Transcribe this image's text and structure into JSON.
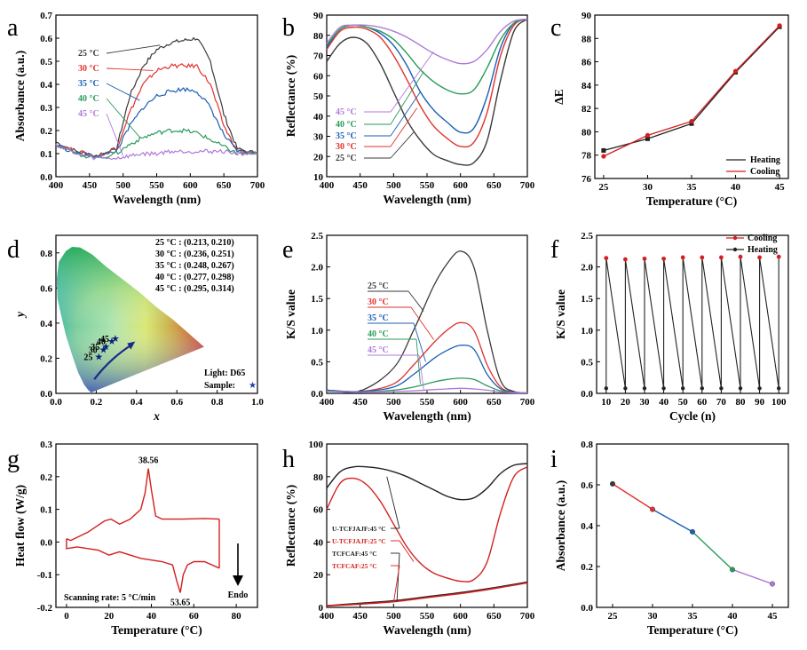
{
  "figure": {
    "panel_labels": [
      "a",
      "b",
      "c",
      "d",
      "e",
      "f",
      "g",
      "h",
      "i"
    ],
    "temperatures": [
      "25 °C",
      "30 °C",
      "35 °C",
      "40 °C",
      "45 °C"
    ],
    "colors": {
      "t25": "#3a3a3a",
      "t30": "#e0322c",
      "t35": "#1a5fb4",
      "t40": "#2a9a5a",
      "t45": "#b07ad8",
      "red": "#d41f1f",
      "black": "#222222"
    }
  },
  "chart_data": [
    {
      "id": "a",
      "type": "line",
      "xlabel": "Wavelength (nm)",
      "ylabel": "Absorbance (a.u.)",
      "xlim": [
        400,
        700
      ],
      "ylim": [
        0,
        0.7
      ],
      "xticks": [
        "400",
        "450",
        "500",
        "550",
        "600",
        "650",
        "700"
      ],
      "yticks": [
        "0.0",
        "0.1",
        "0.2",
        "0.3",
        "0.4",
        "0.5",
        "0.6",
        "0.7"
      ],
      "series": [
        {
          "name": "25 °C",
          "x": [
            400,
            430,
            460,
            490,
            510,
            530,
            550,
            570,
            590,
            610,
            630,
            650,
            670,
            700
          ],
          "y": [
            0.15,
            0.11,
            0.09,
            0.12,
            0.35,
            0.48,
            0.55,
            0.58,
            0.59,
            0.6,
            0.5,
            0.27,
            0.12,
            0.1
          ]
        },
        {
          "name": "30 °C",
          "x": [
            400,
            430,
            460,
            490,
            510,
            530,
            550,
            570,
            590,
            610,
            630,
            650,
            670,
            700
          ],
          "y": [
            0.14,
            0.11,
            0.09,
            0.12,
            0.28,
            0.4,
            0.46,
            0.48,
            0.48,
            0.48,
            0.4,
            0.22,
            0.11,
            0.1
          ]
        },
        {
          "name": "35 °C",
          "x": [
            400,
            430,
            460,
            490,
            510,
            530,
            550,
            570,
            590,
            610,
            630,
            650,
            670,
            700
          ],
          "y": [
            0.14,
            0.1,
            0.09,
            0.11,
            0.22,
            0.3,
            0.35,
            0.37,
            0.38,
            0.37,
            0.3,
            0.18,
            0.11,
            0.1
          ]
        },
        {
          "name": "40 °C",
          "x": [
            400,
            430,
            460,
            490,
            510,
            530,
            550,
            570,
            590,
            610,
            630,
            650,
            670,
            700
          ],
          "y": [
            0.14,
            0.1,
            0.08,
            0.1,
            0.14,
            0.17,
            0.19,
            0.2,
            0.2,
            0.19,
            0.16,
            0.13,
            0.1,
            0.1
          ]
        },
        {
          "name": "45 °C",
          "x": [
            400,
            430,
            460,
            490,
            510,
            530,
            550,
            570,
            590,
            610,
            630,
            650,
            670,
            700
          ],
          "y": [
            0.14,
            0.1,
            0.08,
            0.08,
            0.09,
            0.1,
            0.1,
            0.11,
            0.11,
            0.11,
            0.11,
            0.11,
            0.1,
            0.1
          ]
        }
      ]
    },
    {
      "id": "b",
      "type": "line",
      "xlabel": "Wavelength (nm)",
      "ylabel": "Reflectance (%)",
      "xlim": [
        400,
        700
      ],
      "ylim": [
        10,
        90
      ],
      "xticks": [
        "400",
        "450",
        "500",
        "550",
        "600",
        "650",
        "700"
      ],
      "yticks": [
        "10",
        "20",
        "30",
        "40",
        "50",
        "60",
        "70",
        "80",
        "90"
      ],
      "series": [
        {
          "name": "25 °C",
          "x": [
            400,
            420,
            440,
            460,
            480,
            500,
            520,
            540,
            560,
            580,
            600,
            620,
            640,
            660,
            680,
            700
          ],
          "y": [
            67,
            76,
            79,
            76,
            66,
            52,
            38,
            28,
            21,
            18,
            16,
            17,
            28,
            58,
            82,
            88
          ]
        },
        {
          "name": "30 °C",
          "x": [
            400,
            420,
            440,
            460,
            480,
            500,
            520,
            540,
            560,
            580,
            600,
            620,
            640,
            660,
            680,
            700
          ],
          "y": [
            73,
            82,
            84,
            83,
            79,
            70,
            58,
            45,
            35,
            29,
            25,
            27,
            42,
            70,
            85,
            88
          ]
        },
        {
          "name": "35 °C",
          "x": [
            400,
            420,
            440,
            460,
            480,
            500,
            520,
            540,
            560,
            580,
            600,
            620,
            640,
            660,
            680,
            700
          ],
          "y": [
            74,
            83,
            85,
            84,
            81,
            75,
            65,
            52,
            43,
            37,
            32,
            34,
            50,
            74,
            86,
            88
          ]
        },
        {
          "name": "40 °C",
          "x": [
            400,
            420,
            440,
            460,
            480,
            500,
            520,
            540,
            560,
            580,
            600,
            620,
            640,
            660,
            680,
            700
          ],
          "y": [
            75,
            83,
            85,
            84,
            82,
            78,
            71,
            63,
            57,
            53,
            51,
            53,
            64,
            78,
            86,
            88
          ]
        },
        {
          "name": "45 °C",
          "x": [
            400,
            420,
            440,
            460,
            480,
            500,
            520,
            540,
            560,
            580,
            600,
            620,
            640,
            660,
            680,
            700
          ],
          "y": [
            76,
            84,
            85,
            85,
            84,
            82,
            79,
            75,
            71,
            68,
            66,
            67,
            73,
            82,
            87,
            88
          ]
        }
      ]
    },
    {
      "id": "c",
      "type": "line",
      "xlabel": "Temperature (°C)",
      "ylabel": "ΔE",
      "xlim": [
        24,
        46
      ],
      "ylim": [
        76,
        90
      ],
      "xticks": [
        "25",
        "30",
        "35",
        "40",
        "45"
      ],
      "yticks": [
        "76",
        "78",
        "80",
        "82",
        "84",
        "86",
        "88",
        "90"
      ],
      "legend": [
        "Heating",
        "Cooling"
      ],
      "series": [
        {
          "name": "Heating",
          "x": [
            25,
            30,
            35,
            40,
            45
          ],
          "y": [
            78.4,
            79.4,
            80.7,
            85.1,
            89.0
          ]
        },
        {
          "name": "Cooling",
          "x": [
            25,
            30,
            35,
            40,
            45
          ],
          "y": [
            77.9,
            79.7,
            80.9,
            85.2,
            89.1
          ]
        }
      ]
    },
    {
      "id": "d",
      "type": "scatter",
      "xlabel": "x",
      "ylabel": "y",
      "xlim": [
        0,
        1
      ],
      "ylim": [
        0,
        0.9
      ],
      "xticks": [
        "0.0",
        "0.2",
        "0.4",
        "0.6",
        "0.8",
        "1.0"
      ],
      "yticks": [
        "0.0",
        "0.2",
        "0.4",
        "0.6",
        "0.8"
      ],
      "coords_text": [
        "25 °C : (0.213, 0.210)",
        "30 °C : (0.236, 0.251)",
        "35 °C : (0.248, 0.267)",
        "40 °C : (0.277, 0.298)",
        "45 °C : (0.295, 0.314)"
      ],
      "points": [
        {
          "label": "25",
          "x": 0.213,
          "y": 0.21
        },
        {
          "label": "30",
          "x": 0.236,
          "y": 0.251
        },
        {
          "label": "35",
          "x": 0.248,
          "y": 0.267
        },
        {
          "label": "40",
          "x": 0.277,
          "y": 0.298
        },
        {
          "label": "45",
          "x": 0.295,
          "y": 0.314
        }
      ],
      "light_text": "Light: D65",
      "sample_text": "Sample:"
    },
    {
      "id": "e",
      "type": "line",
      "xlabel": "Wavelength (nm)",
      "ylabel": "K/S value",
      "xlim": [
        400,
        700
      ],
      "ylim": [
        0,
        2.5
      ],
      "xticks": [
        "400",
        "450",
        "500",
        "550",
        "600",
        "650",
        "700"
      ],
      "yticks": [
        "0.0",
        "0.5",
        "1.0",
        "1.5",
        "2.0",
        "2.5"
      ],
      "series": [
        {
          "name": "25 °C",
          "x": [
            400,
            450,
            500,
            530,
            560,
            580,
            600,
            620,
            640,
            660,
            680,
            700
          ],
          "y": [
            0.05,
            0.04,
            0.4,
            1.0,
            1.7,
            2.05,
            2.25,
            2.0,
            1.0,
            0.2,
            0.03,
            0.01
          ]
        },
        {
          "name": "30 °C",
          "x": [
            400,
            450,
            500,
            530,
            560,
            580,
            600,
            620,
            640,
            660,
            680,
            700
          ],
          "y": [
            0.05,
            0.03,
            0.15,
            0.45,
            0.8,
            1.0,
            1.12,
            1.0,
            0.45,
            0.1,
            0.02,
            0.01
          ]
        },
        {
          "name": "35 °C",
          "x": [
            400,
            450,
            500,
            530,
            560,
            580,
            600,
            620,
            640,
            660,
            680,
            700
          ],
          "y": [
            0.05,
            0.03,
            0.1,
            0.3,
            0.55,
            0.68,
            0.76,
            0.7,
            0.3,
            0.07,
            0.02,
            0.01
          ]
        },
        {
          "name": "40 °C",
          "x": [
            400,
            450,
            500,
            530,
            560,
            580,
            600,
            620,
            640,
            660,
            680,
            700
          ],
          "y": [
            0.04,
            0.02,
            0.05,
            0.1,
            0.18,
            0.22,
            0.24,
            0.22,
            0.12,
            0.04,
            0.01,
            0.01
          ]
        },
        {
          "name": "45 °C",
          "x": [
            400,
            450,
            500,
            530,
            560,
            580,
            600,
            620,
            640,
            660,
            680,
            700
          ],
          "y": [
            0.03,
            0.02,
            0.03,
            0.04,
            0.06,
            0.07,
            0.08,
            0.07,
            0.05,
            0.02,
            0.01,
            0.01
          ]
        }
      ]
    },
    {
      "id": "f",
      "type": "line",
      "xlabel": "Cycle (n)",
      "ylabel": "K/S value",
      "xlim": [
        5,
        105
      ],
      "ylim": [
        0,
        2.5
      ],
      "xticks": [
        "10",
        "20",
        "30",
        "40",
        "50",
        "60",
        "70",
        "80",
        "90",
        "100"
      ],
      "yticks": [
        "0.0",
        "0.5",
        "1.0",
        "1.5",
        "2.0",
        "2.5"
      ],
      "legend": [
        "Cooling",
        "Heating"
      ],
      "series": [
        {
          "name": "Cooling",
          "x": [
            10,
            20,
            30,
            40,
            50,
            60,
            70,
            80,
            90,
            100
          ],
          "y": [
            2.14,
            2.12,
            2.13,
            2.13,
            2.15,
            2.15,
            2.15,
            2.16,
            2.15,
            2.16
          ]
        },
        {
          "name": "Heating",
          "x": [
            10,
            20,
            30,
            40,
            50,
            60,
            70,
            80,
            90,
            100
          ],
          "y": [
            0.08,
            0.08,
            0.08,
            0.08,
            0.08,
            0.08,
            0.08,
            0.08,
            0.08,
            0.08
          ]
        }
      ]
    },
    {
      "id": "g",
      "type": "line",
      "xlabel": "Temperature (°C)",
      "ylabel": "Heat flow (W/g)",
      "xlim": [
        -5,
        90
      ],
      "ylim": [
        -0.2,
        0.3
      ],
      "xticks": [
        "0",
        "20",
        "40",
        "60",
        "80"
      ],
      "yticks": [
        "-0.2",
        "-0.1",
        "0.0",
        "0.1",
        "0.2",
        "0.3"
      ],
      "peak_up": "38.56",
      "peak_down": "53.65",
      "note": "Scanning rate: 5 °C/min",
      "endo": "Endo",
      "series": [
        {
          "name": "Heating",
          "x": [
            0,
            2,
            10,
            18,
            21,
            25,
            30,
            35,
            37,
            38.56,
            40,
            42,
            45,
            55,
            65,
            72
          ],
          "y": [
            0.01,
            0.005,
            0.03,
            0.065,
            0.07,
            0.055,
            0.07,
            0.1,
            0.15,
            0.225,
            0.16,
            0.08,
            0.07,
            0.07,
            0.072,
            0.07
          ]
        },
        {
          "name": "Cooling",
          "x": [
            72,
            65,
            60,
            57,
            55,
            53.65,
            52,
            50,
            45,
            35,
            25,
            20,
            15,
            5,
            0,
            0
          ],
          "y": [
            -0.08,
            -0.06,
            -0.06,
            -0.07,
            -0.1,
            -0.155,
            -0.12,
            -0.07,
            -0.06,
            -0.05,
            -0.03,
            -0.04,
            -0.025,
            -0.015,
            -0.02,
            0.01
          ]
        }
      ]
    },
    {
      "id": "h",
      "type": "line",
      "xlabel": "Wavelength (nm)",
      "ylabel": "Reflectance (%)",
      "xlim": [
        400,
        700
      ],
      "ylim": [
        0,
        100
      ],
      "xticks": [
        "400",
        "450",
        "500",
        "550",
        "600",
        "650",
        "700"
      ],
      "yticks": [
        "0",
        "20",
        "40",
        "60",
        "80",
        "100"
      ],
      "series": [
        {
          "name": "U-TCFJAJF:45 °C",
          "x": [
            400,
            420,
            440,
            460,
            480,
            500,
            520,
            540,
            560,
            580,
            600,
            620,
            640,
            660,
            680,
            700
          ],
          "y": [
            73,
            83,
            86,
            86,
            85,
            83,
            80,
            76,
            72,
            68,
            66,
            67,
            73,
            82,
            87,
            88
          ]
        },
        {
          "name": "U-TCFJAJF:25 °C",
          "x": [
            400,
            420,
            440,
            460,
            480,
            500,
            520,
            540,
            560,
            580,
            600,
            620,
            640,
            660,
            680,
            700
          ],
          "y": [
            60,
            76,
            79,
            75,
            65,
            51,
            37,
            27,
            21,
            18,
            16,
            17,
            28,
            58,
            80,
            86
          ]
        },
        {
          "name": "TCFCAF:45 °C",
          "x": [
            400,
            450,
            500,
            550,
            600,
            650,
            700
          ],
          "y": [
            1,
            2.5,
            4,
            6.5,
            9,
            12,
            15.5
          ]
        },
        {
          "name": "TCFCAF:25 °C",
          "x": [
            400,
            450,
            500,
            550,
            600,
            650,
            700
          ],
          "y": [
            1,
            2,
            3.5,
            6,
            8.5,
            11.5,
            15
          ]
        }
      ]
    },
    {
      "id": "i",
      "type": "line",
      "xlabel": "Temperature (°C)",
      "ylabel": "Absorbance (a.u.)",
      "xlim": [
        23,
        47
      ],
      "ylim": [
        0,
        0.8
      ],
      "xticks": [
        "25",
        "30",
        "35",
        "40",
        "45"
      ],
      "yticks": [
        "0.0",
        "0.2",
        "0.4",
        "0.6",
        "0.8"
      ],
      "series": [
        {
          "name": "Absorbance",
          "x": [
            25,
            30,
            35,
            40,
            45
          ],
          "y": [
            0.605,
            0.48,
            0.37,
            0.185,
            0.115
          ]
        }
      ]
    }
  ]
}
